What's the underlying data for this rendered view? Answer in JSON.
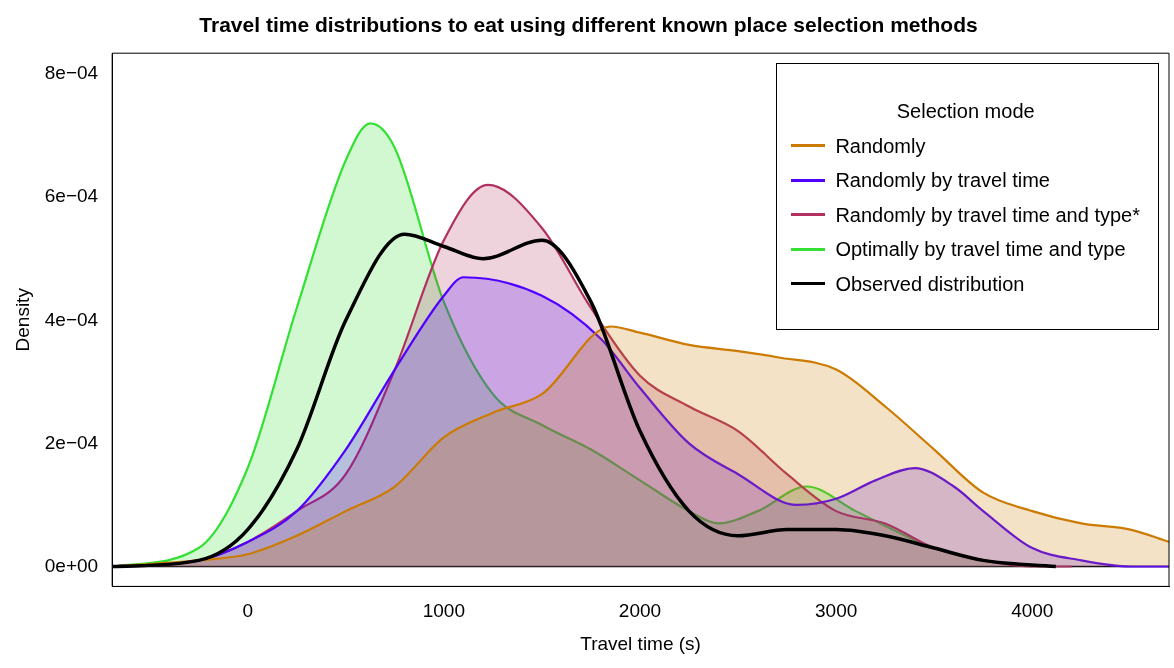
{
  "chart_data": {
    "type": "area",
    "title": "Travel time distributions to eat using different known place selection methods",
    "xlabel": "Travel time (s)",
    "ylabel": "Density",
    "legend_title": "Selection mode",
    "legend": "top right",
    "grid": false,
    "marker": "none",
    "line_style": "solid",
    "xlim": [
      -691,
      4697
    ],
    "xticks": [
      0,
      1000,
      2000,
      3000,
      4000
    ],
    "ylim": [
      -3.23e-05,
      0.000834
    ],
    "yticks": [
      {
        "value": 0,
        "label": "0e+00"
      },
      {
        "value": 0.0002,
        "label": "2e−04"
      },
      {
        "value": 0.0004,
        "label": "4e−04"
      },
      {
        "value": 0.0006,
        "label": "6e−04"
      },
      {
        "value": 0.0008,
        "label": "8e−04"
      }
    ],
    "ref_lines": [
      {
        "axis": "y",
        "value": 0,
        "color": "#000000"
      }
    ],
    "series": [
      {
        "name": "Randomly",
        "color": "#cc7a00",
        "x": [
          -691,
          -250,
          0,
          250,
          500,
          750,
          1000,
          1250,
          1500,
          1850,
          2000,
          2250,
          2500,
          2700,
          3000,
          3250,
          3500,
          3750,
          4000,
          4250,
          4500,
          4697
        ],
        "values": [
          0,
          1e-05,
          2e-05,
          5e-05,
          9e-05,
          0.00013,
          0.00021,
          0.00025,
          0.00028,
          0.00039,
          0.00038,
          0.00036,
          0.00035,
          0.00034,
          0.00032,
          0.00026,
          0.00019,
          0.00012,
          9e-05,
          7e-05,
          6e-05,
          4e-05
        ]
      },
      {
        "name": "Randomly by travel time",
        "color": "#4f00ff",
        "x": [
          -691,
          -250,
          0,
          250,
          500,
          750,
          1000,
          1100,
          1500,
          1800,
          2000,
          2250,
          2500,
          2800,
          3000,
          3200,
          3400,
          3600,
          3750,
          4000,
          4250,
          4500,
          4697
        ],
        "values": [
          0,
          1e-05,
          4e-05,
          9e-05,
          0.00019,
          0.00032,
          0.00044,
          0.00047,
          0.00044,
          0.00037,
          0.00029,
          0.0002,
          0.00015,
          0.0001,
          0.00011,
          0.00014,
          0.00016,
          0.00013,
          9e-05,
          3e-05,
          1e-05,
          0,
          0
        ]
      },
      {
        "name": "Randomly by travel time and type*",
        "color": "#b03060",
        "x": [
          -691,
          -250,
          0,
          250,
          500,
          750,
          1000,
          1225,
          1500,
          1750,
          2000,
          2250,
          2500,
          2750,
          3000,
          3250,
          3500,
          3750,
          4000,
          4200
        ],
        "values": [
          0,
          1e-05,
          4e-05,
          9e-05,
          0.00015,
          0.00032,
          0.00053,
          0.00062,
          0.00055,
          0.00042,
          0.00031,
          0.00026,
          0.00022,
          0.00015,
          9e-05,
          7e-05,
          3e-05,
          1e-05,
          0,
          0
        ]
      },
      {
        "name": "Optimally by travel time and type",
        "color": "#33e033",
        "x": [
          -691,
          -250,
          0,
          250,
          500,
          625,
          750,
          1000,
          1250,
          1500,
          1750,
          2000,
          2250,
          2400,
          2600,
          2850,
          3100,
          3500,
          3750,
          4000
        ],
        "values": [
          0,
          3e-05,
          0.00016,
          0.00042,
          0.00066,
          0.00072,
          0.00068,
          0.00043,
          0.00028,
          0.00023,
          0.00019,
          0.00014,
          9e-05,
          7e-05,
          9e-05,
          0.00013,
          9e-05,
          3e-05,
          1e-05,
          0
        ]
      },
      {
        "name": "Observed distribution",
        "type": "line",
        "color": "#000000",
        "x": [
          -691,
          -250,
          0,
          250,
          500,
          800,
          1000,
          1200,
          1500,
          1750,
          2000,
          2250,
          2500,
          2750,
          3000,
          3250,
          3500,
          3750,
          4120
        ],
        "values": [
          0,
          1e-05,
          6e-05,
          0.00019,
          0.0004,
          0.00054,
          0.00052,
          0.0005,
          0.00053,
          0.00043,
          0.00022,
          9e-05,
          5e-05,
          6e-05,
          6e-05,
          5e-05,
          3e-05,
          1e-05,
          0
        ]
      }
    ]
  }
}
